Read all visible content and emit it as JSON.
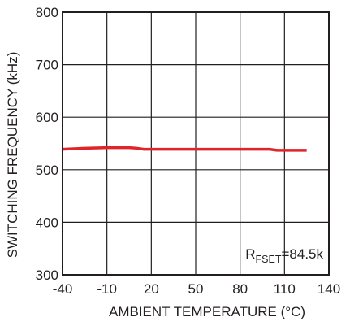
{
  "chart_data": {
    "type": "line",
    "xlabel": "AMBIENT TEMPERATURE (°C)",
    "ylabel": "SWITCHING FREQUENCY (kHz)",
    "xlim": [
      -40,
      140
    ],
    "ylim": [
      300,
      800
    ],
    "xticks": [
      -40,
      -10,
      20,
      50,
      80,
      110,
      140
    ],
    "xtick_labels": [
      "-40",
      "-10",
      "20",
      "50",
      "80",
      "110",
      "140"
    ],
    "yticks": [
      300,
      400,
      500,
      600,
      700,
      800
    ],
    "ytick_labels": [
      "300",
      "400",
      "500",
      "600",
      "700",
      "800"
    ],
    "grid": true,
    "series": [
      {
        "name": "",
        "color": "#e0252a",
        "x": [
          -40,
          -25,
          -10,
          5,
          10,
          15,
          20,
          50,
          80,
          100,
          105,
          110,
          125
        ],
        "y": [
          539,
          541,
          542,
          542,
          541,
          539,
          539,
          539,
          539,
          539,
          537,
          537,
          537
        ]
      }
    ],
    "annotations": [
      {
        "main": "R",
        "sub": "FSET",
        "value": "=84.5k",
        "position": "bottom-right"
      }
    ]
  }
}
